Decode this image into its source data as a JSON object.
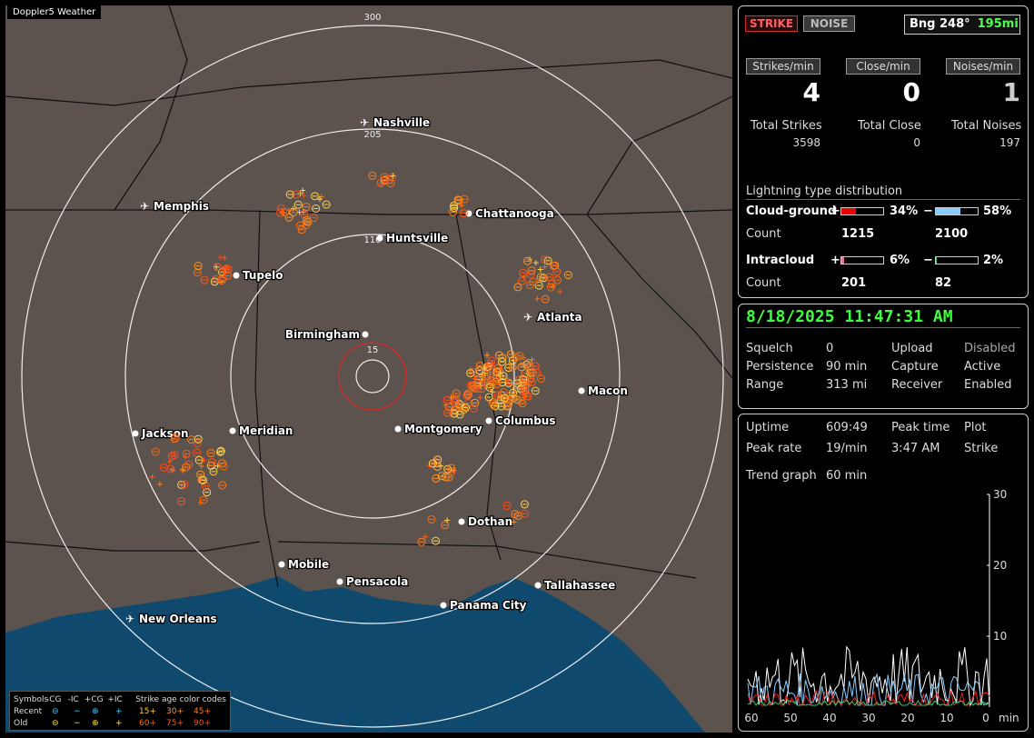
{
  "app": {
    "title": "Doppler5 Weather"
  },
  "map": {
    "range_labels": [
      "300",
      "205",
      "110",
      "15"
    ],
    "cities": [
      {
        "name": "Nashville",
        "airport": true
      },
      {
        "name": "Memphis",
        "airport": true
      },
      {
        "name": "Chattanooga",
        "airport": false
      },
      {
        "name": "Huntsville",
        "airport": false
      },
      {
        "name": "Tupelo",
        "airport": false
      },
      {
        "name": "Atlanta",
        "airport": true
      },
      {
        "name": "Birmingham",
        "airport": false
      },
      {
        "name": "Macon",
        "airport": false
      },
      {
        "name": "Columbus",
        "airport": false
      },
      {
        "name": "Montgomery",
        "airport": false
      },
      {
        "name": "Jackson",
        "airport": false
      },
      {
        "name": "Meridian",
        "airport": false
      },
      {
        "name": "Dothan",
        "airport": false
      },
      {
        "name": "Mobile",
        "airport": false
      },
      {
        "name": "Pensacola",
        "airport": false
      },
      {
        "name": "Tallahassee",
        "airport": false
      },
      {
        "name": "Panama City",
        "airport": false
      },
      {
        "name": "New Orleans",
        "airport": true
      }
    ],
    "legend": {
      "symbols_label": "Symbols",
      "headers": [
        "-CG",
        "-IC",
        "+CG",
        "+IC"
      ],
      "recent_label": "Recent",
      "old_label": "Old",
      "age_title": "Strike age color codes",
      "recent_ages": [
        "15+",
        "30+",
        "45+"
      ],
      "old_ages": [
        "60+",
        "75+",
        "90+"
      ],
      "age_colors": [
        "#ffd24a",
        "#ff9a2a",
        "#ff7a1a",
        "#ff6a00",
        "#ff5a1a",
        "#ff4a1a"
      ]
    }
  },
  "panel": {
    "strike_btn": "STRIKE",
    "noise_btn": "NOISE",
    "bearing": "Bng 248°",
    "distance": "195mi",
    "strikes_min_label": "Strikes/min",
    "close_min_label": "Close/min",
    "noises_min_label": "Noises/min",
    "strikes_min": "4",
    "close_min": "0",
    "noises_min": "1",
    "total_strikes_label": "Total Strikes",
    "total_close_label": "Total Close",
    "total_noises_label": "Total Noises",
    "total_strikes": "3598",
    "total_close": "0",
    "total_noises": "197",
    "dist_title": "Lightning type distribution",
    "cg_label": "Cloud-ground",
    "ic_label": "Intracloud",
    "count_label": "Count",
    "plus": "+",
    "minus": "−",
    "cg_pos_pct": "34%",
    "cg_neg_pct": "58%",
    "ic_pos_pct": "6%",
    "ic_neg_pct": "2%",
    "cg_pos_fraction": 0.34,
    "cg_neg_fraction": 0.58,
    "ic_pos_fraction": 0.06,
    "ic_neg_fraction": 0.02,
    "cg_pos_count": "1215",
    "cg_neg_count": "2100",
    "ic_pos_count": "201",
    "ic_neg_count": "82"
  },
  "status": {
    "datetime": "8/18/2025 11:47:31 AM",
    "squelch_label": "Squelch",
    "squelch": "0",
    "persistence_label": "Persistence",
    "persistence": "90 min",
    "range_label": "Range",
    "range": "313 mi",
    "upload_label": "Upload",
    "upload": "Disabled",
    "capture_label": "Capture",
    "capture": "Active",
    "receiver_label": "Receiver",
    "receiver": "Enabled"
  },
  "trend": {
    "uptime_label": "Uptime",
    "uptime": "609:49",
    "peak_time_label": "Peak time",
    "peak_time": "3:47 AM",
    "plot_label": "Plot",
    "peak_rate_label": "Peak rate",
    "peak_rate": "19/min",
    "plot_value": "Strike",
    "trend_graph_label": "Trend graph",
    "trend_graph": "60 min",
    "y_ticks": [
      "30",
      "20",
      "10"
    ],
    "x_ticks": [
      "60",
      "50",
      "40",
      "30",
      "20",
      "10",
      "0"
    ],
    "x_unit": "min"
  }
}
